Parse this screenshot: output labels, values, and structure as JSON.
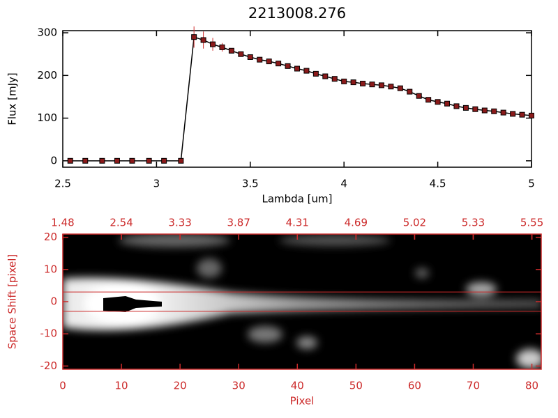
{
  "chart_data": [
    {
      "type": "line",
      "title": "2213008.276",
      "xlabel": "Lambda [um]",
      "ylabel": "Flux [mJy]",
      "x": [
        2.54,
        2.62,
        2.71,
        2.79,
        2.87,
        2.96,
        3.04,
        3.13,
        3.2,
        3.25,
        3.3,
        3.35,
        3.4,
        3.45,
        3.5,
        3.55,
        3.6,
        3.65,
        3.7,
        3.75,
        3.8,
        3.85,
        3.9,
        3.95,
        4.0,
        4.05,
        4.1,
        4.15,
        4.2,
        4.25,
        4.3,
        4.35,
        4.4,
        4.45,
        4.5,
        4.55,
        4.6,
        4.65,
        4.7,
        4.75,
        4.8,
        4.85,
        4.9,
        4.95,
        5.0
      ],
      "values": [
        0,
        0,
        0,
        0,
        0,
        0,
        0,
        0,
        290,
        283,
        273,
        266,
        258,
        250,
        243,
        237,
        233,
        228,
        222,
        216,
        211,
        204,
        198,
        192,
        186,
        184,
        181,
        179,
        177,
        174,
        170,
        162,
        152,
        143,
        138,
        134,
        128,
        124,
        121,
        118,
        116,
        113,
        110,
        108,
        106
      ],
      "errors": [
        2,
        2,
        2,
        2,
        2,
        2,
        2,
        2,
        25,
        20,
        15,
        10,
        4,
        3,
        3,
        3,
        3,
        3,
        3,
        3,
        3,
        3,
        3,
        3,
        3,
        3,
        3,
        3,
        3,
        3,
        3,
        3,
        3,
        3,
        3,
        3,
        3,
        3,
        3,
        3,
        3,
        3,
        3,
        3,
        3
      ],
      "color": "#8b1a1a",
      "error_color": "#d03030",
      "axis_color": "#000000",
      "xlim": [
        2.5,
        5.0
      ],
      "ylim": [
        -15,
        305
      ],
      "xticks": [
        2.5,
        3.0,
        3.5,
        4.0,
        4.5,
        5.0
      ],
      "yticks": [
        0,
        100,
        200,
        300
      ]
    },
    {
      "type": "image",
      "xlabel": "Pixel",
      "ylabel": "Space Shift [pixel]",
      "xlim": [
        0,
        81.6
      ],
      "ylim": [
        -21,
        21
      ],
      "xticks": [
        0,
        10,
        20,
        30,
        40,
        50,
        60,
        70,
        80
      ],
      "yticks": [
        -20,
        -10,
        0,
        10,
        20
      ],
      "x2ticks": [
        {
          "value": 0,
          "label": "1.48"
        },
        {
          "value": 10,
          "label": "2.54"
        },
        {
          "value": 20,
          "label": "3.33"
        },
        {
          "value": 30,
          "label": "3.87"
        },
        {
          "value": 40,
          "label": "4.31"
        },
        {
          "value": 50,
          "label": "4.69"
        },
        {
          "value": 60,
          "label": "5.02"
        },
        {
          "value": 70,
          "label": "5.33"
        },
        {
          "value": 80,
          "label": "5.55"
        }
      ],
      "hlines": [
        3,
        -3
      ],
      "axis_color": "#cc2a2a"
    }
  ]
}
